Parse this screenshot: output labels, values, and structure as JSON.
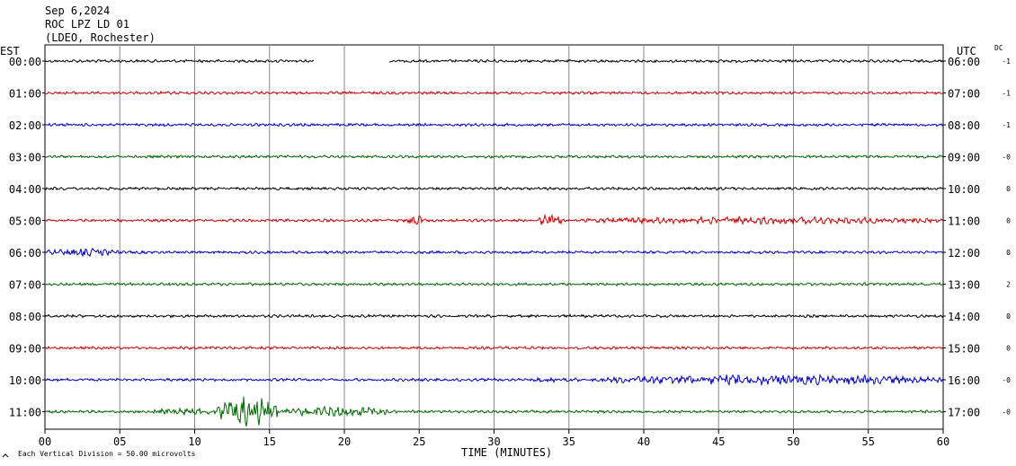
{
  "header": {
    "date": "Sep 6,2024",
    "station": "ROC LPZ LD 01",
    "network": "(LDEO, Rochester)"
  },
  "labels": {
    "left_tz": "EST",
    "right_tz": "UTC",
    "dc": "DC",
    "footer": "Each Vertical Division =   50.00 microvolts"
  },
  "chart_data": {
    "type": "line",
    "title": "Sep 6,2024",
    "xlabel": "TIME (MINUTES)",
    "xlim": [
      0,
      60
    ],
    "x_ticks": [
      "00",
      "05",
      "10",
      "15",
      "20",
      "25",
      "30",
      "35",
      "40",
      "45",
      "50",
      "55",
      "60"
    ],
    "grid": "vertical lines every 5 minutes",
    "vertical_division": "50.00 microvolts",
    "trace_colors": [
      "#000000",
      "#cc0000",
      "#0000cc",
      "#006600"
    ],
    "rows": [
      {
        "est": "00:00",
        "utc": "06:00",
        "dc": "-1",
        "color": "#000000",
        "gap": [
          18,
          23
        ],
        "events": []
      },
      {
        "est": "01:00",
        "utc": "07:00",
        "dc": "-1",
        "color": "#cc0000",
        "events": []
      },
      {
        "est": "02:00",
        "utc": "08:00",
        "dc": "-1",
        "color": "#0000cc",
        "events": []
      },
      {
        "est": "03:00",
        "utc": "09:00",
        "dc": "-0",
        "color": "#006600",
        "events": []
      },
      {
        "est": "04:00",
        "utc": "10:00",
        "dc": "0",
        "color": "#000000",
        "events": []
      },
      {
        "est": "05:00",
        "utc": "11:00",
        "dc": "0",
        "color": "#cc0000",
        "events": [
          [
            24.2,
            25.2,
            5
          ],
          [
            33.0,
            34.5,
            5
          ],
          [
            36.0,
            60.0,
            3
          ]
        ]
      },
      {
        "est": "06:00",
        "utc": "12:00",
        "dc": "0",
        "color": "#0000cc",
        "events": [
          [
            0.0,
            5.0,
            3
          ]
        ]
      },
      {
        "est": "07:00",
        "utc": "13:00",
        "dc": "2",
        "color": "#006600",
        "events": []
      },
      {
        "est": "08:00",
        "utc": "14:00",
        "dc": "0",
        "color": "#000000",
        "events": []
      },
      {
        "est": "09:00",
        "utc": "15:00",
        "dc": "0",
        "color": "#cc0000",
        "events": []
      },
      {
        "est": "10:00",
        "utc": "16:00",
        "dc": "-0",
        "color": "#0000cc",
        "events": [
          [
            32.0,
            37.0,
            2
          ],
          [
            37.0,
            60.0,
            4
          ]
        ]
      },
      {
        "est": "11:00",
        "utc": "17:00",
        "dc": "-0",
        "color": "#006600",
        "events": [
          [
            7.0,
            11.5,
            3
          ],
          [
            11.5,
            15.5,
            12
          ],
          [
            15.5,
            23.0,
            4
          ]
        ]
      }
    ]
  }
}
